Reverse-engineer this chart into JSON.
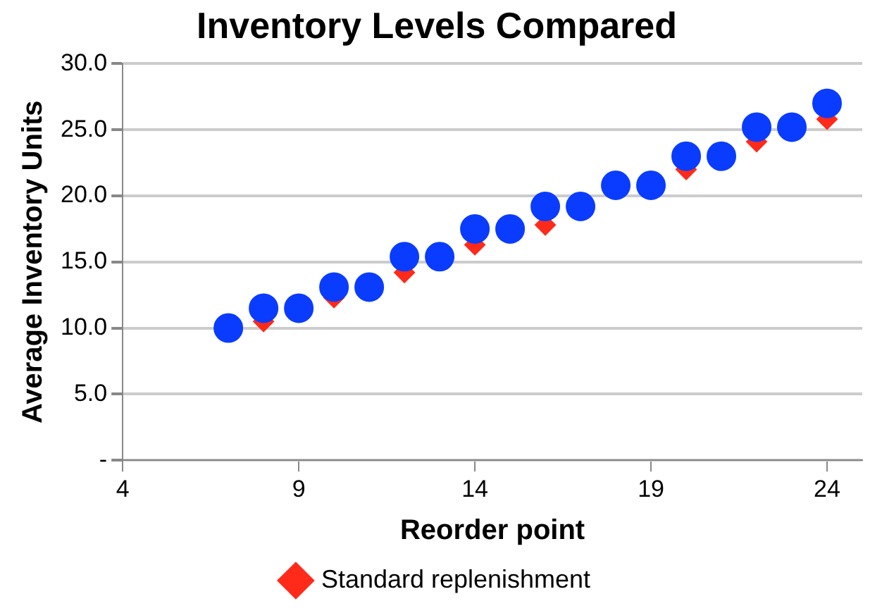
{
  "chart_data": {
    "type": "scatter",
    "title": "Inventory Levels Compared",
    "xlabel": "Reorder point",
    "ylabel": "Average Inventory Units",
    "x": [
      7,
      8,
      9,
      10,
      11,
      12,
      13,
      14,
      15,
      16,
      17,
      18,
      19,
      20,
      21,
      22,
      23,
      24
    ],
    "series": [
      {
        "name": "Standard replenishment",
        "color": "#ff2a1a",
        "marker": "diamond",
        "values": [
          null,
          10.5,
          null,
          12.3,
          null,
          14.2,
          null,
          16.3,
          null,
          17.8,
          null,
          null,
          null,
          22,
          null,
          24.1,
          null,
          25.8
        ]
      },
      {
        "color": "#0a3cff",
        "marker": "circle",
        "values": [
          10,
          11.5,
          11.5,
          13.1,
          13.1,
          15.4,
          15.4,
          17.5,
          17.5,
          19.2,
          19.2,
          20.8,
          20.8,
          23,
          23,
          25.2,
          25.2,
          27
        ]
      }
    ],
    "xlim": [
      4,
      25
    ],
    "xticks": [
      4,
      9,
      14,
      19,
      24
    ],
    "ylim": [
      0,
      30
    ],
    "yticks": [
      {
        "value": 0,
        "label": "-"
      },
      {
        "value": 5,
        "label": "5.0"
      },
      {
        "value": 10,
        "label": "10.0"
      },
      {
        "value": 15,
        "label": "15.0"
      },
      {
        "value": 20,
        "label": "20.0"
      },
      {
        "value": 25,
        "label": "25.0"
      },
      {
        "value": 30,
        "label": "30.0"
      }
    ],
    "grid": "y",
    "legend": "bottom"
  }
}
